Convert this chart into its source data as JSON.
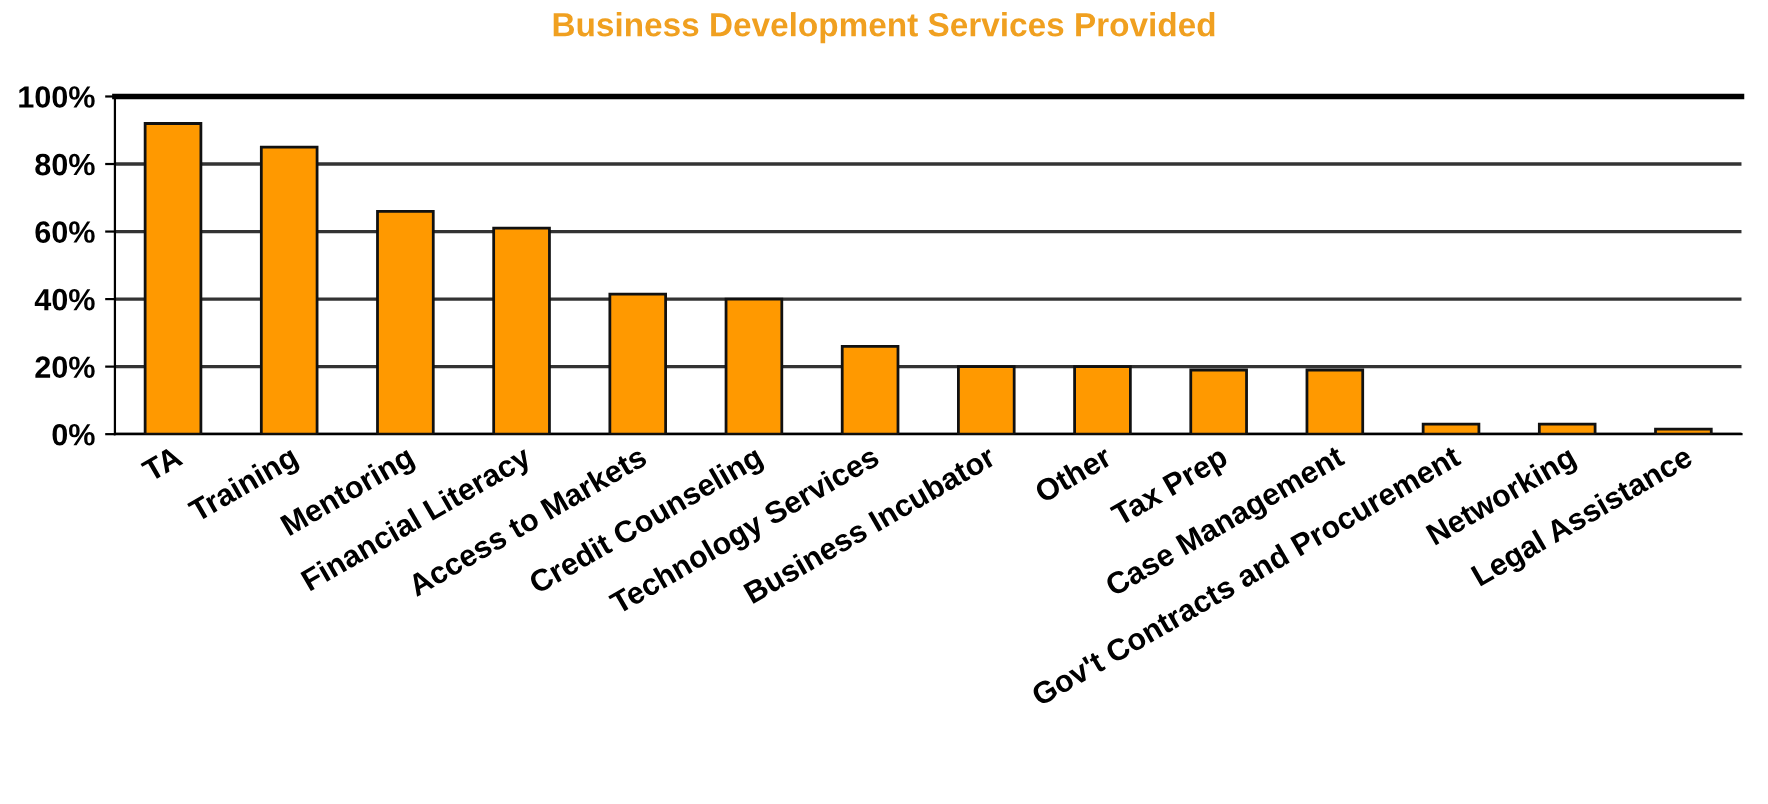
{
  "chart_data": {
    "type": "bar",
    "title": "Business Development Services Provided",
    "categories": [
      "TA",
      "Training",
      "Mentoring",
      "Financial Literacy",
      "Access to Markets",
      "Credit Counseling",
      "Technology Services",
      "Business Incubator",
      "Other",
      "Tax Prep",
      "Case Management",
      "Gov't Contracts and Procurement",
      "Networking",
      "Legal Assistance"
    ],
    "values": [
      92,
      85,
      66,
      61,
      41.5,
      40,
      26,
      20,
      20,
      19,
      19,
      3,
      3,
      1.5
    ],
    "color": "#ff9900",
    "ylim": [
      0,
      100
    ],
    "yticks": [
      {
        "value": 0,
        "label": "0%"
      },
      {
        "value": 20,
        "label": "20%"
      },
      {
        "value": 40,
        "label": "40%"
      },
      {
        "value": 60,
        "label": "60%"
      },
      {
        "value": 80,
        "label": "80%"
      },
      {
        "value": 100,
        "label": "100%"
      }
    ],
    "grid": "y"
  }
}
